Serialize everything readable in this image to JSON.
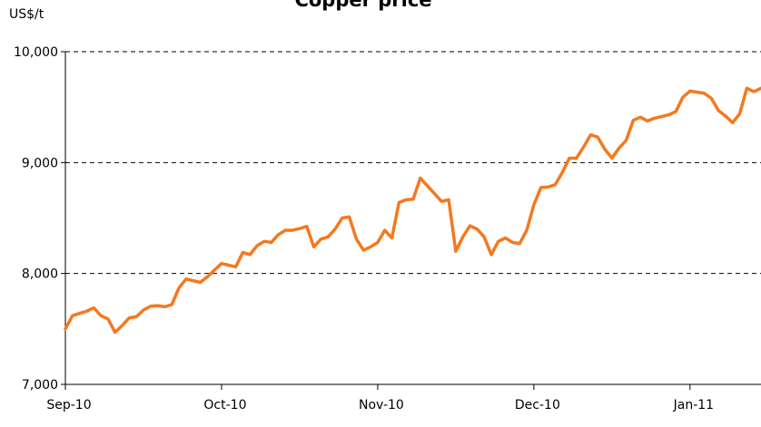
{
  "chart_data": {
    "type": "line",
    "title": "Copper price",
    "y_label": "US$/t",
    "categories": [
      "Sep-10",
      null,
      null,
      null,
      null,
      null,
      null,
      null,
      null,
      null,
      null,
      null,
      null,
      null,
      null,
      null,
      null,
      null,
      null,
      null,
      null,
      null,
      "Oct-10",
      null,
      null,
      null,
      null,
      null,
      null,
      null,
      null,
      null,
      null,
      null,
      null,
      null,
      null,
      null,
      null,
      null,
      null,
      null,
      null,
      null,
      "Nov-10",
      null,
      null,
      null,
      null,
      null,
      null,
      null,
      null,
      null,
      null,
      null,
      null,
      null,
      null,
      null,
      null,
      null,
      null,
      null,
      null,
      null,
      "Dec-10",
      null,
      null,
      null,
      null,
      null,
      null,
      null,
      null,
      null,
      null,
      null,
      null,
      null,
      null,
      null,
      null,
      null,
      null,
      null,
      null,
      null,
      "Jan-11",
      null,
      null,
      null,
      null,
      null,
      null,
      null,
      null,
      null,
      null
    ],
    "series": [
      {
        "name": "Copper price",
        "color": "#f47920",
        "values": [
          7500,
          7620,
          7640,
          7660,
          7690,
          7620,
          7590,
          7470,
          7530,
          7600,
          7610,
          7670,
          7705,
          7710,
          7700,
          7720,
          7870,
          7950,
          7935,
          7920,
          7970,
          8030,
          8090,
          8075,
          8060,
          8190,
          8170,
          8250,
          8290,
          8280,
          8350,
          8390,
          8390,
          8405,
          8425,
          8240,
          8310,
          8330,
          8400,
          8500,
          8510,
          8310,
          8210,
          8240,
          8280,
          8390,
          8320,
          8640,
          8665,
          8670,
          8860,
          8790,
          8720,
          8650,
          8665,
          8200,
          8330,
          8430,
          8400,
          8330,
          8170,
          8290,
          8320,
          8280,
          8270,
          8390,
          8620,
          8775,
          8780,
          8800,
          8910,
          9040,
          9040,
          9140,
          9250,
          9230,
          9120,
          9040,
          9130,
          9200,
          9380,
          9410,
          9375,
          9400,
          9415,
          9430,
          9460,
          9590,
          9645,
          9635,
          9625,
          9580,
          9470,
          9420,
          9360,
          9440,
          9670,
          9640,
          9670
        ]
      }
    ],
    "ylim": [
      7000,
      10000
    ],
    "yticks": [
      {
        "value": 7000,
        "label": "7,000"
      },
      {
        "value": 8000,
        "label": "8,000"
      },
      {
        "value": 9000,
        "label": "9,000"
      },
      {
        "value": 10000,
        "label": "10,000"
      }
    ],
    "grid": true
  }
}
